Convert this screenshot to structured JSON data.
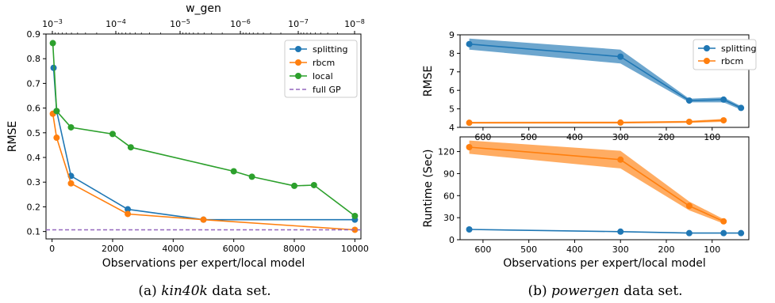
{
  "chart_data": [
    {
      "type": "line",
      "caption": {
        "prefix": "(a) ",
        "dataset": "kin40k",
        "suffix": " data set."
      },
      "xlabel": "Observations per expert/local model",
      "ylabel": "RMSE",
      "top_xlabel": "w_gen",
      "xlim": [
        -200,
        10200
      ],
      "ylim": [
        0.07,
        0.9
      ],
      "xticks": [
        0,
        2000,
        4000,
        6000,
        8000,
        10000
      ],
      "xtick_labels": [
        "0",
        "2000",
        "4000",
        "6000",
        "8000",
        "10000"
      ],
      "yticks": [
        0.1,
        0.2,
        0.3,
        0.4,
        0.5,
        0.6,
        0.7,
        0.8,
        0.9
      ],
      "ytick_labels": [
        "0.1",
        "0.2",
        "0.3",
        "0.4",
        "0.5",
        "0.6",
        "0.7",
        "0.8",
        "0.9"
      ],
      "top_xaxis": {
        "scale": "log",
        "ticks": [
          {
            "value": 0.001,
            "base": "10",
            "exp": "−3"
          },
          {
            "value": 0.0001,
            "base": "10",
            "exp": "−4"
          },
          {
            "value": 1e-05,
            "base": "10",
            "exp": "−5"
          },
          {
            "value": 1e-06,
            "base": "10",
            "exp": "−6"
          },
          {
            "value": 1e-07,
            "base": "10",
            "exp": "−7"
          },
          {
            "value": 1e-08,
            "base": "10",
            "exp": "−8"
          }
        ]
      },
      "legend_position": "top-right",
      "series": [
        {
          "name": "splitting",
          "color": "#1f77b4",
          "x": [
            50,
            150,
            625,
            2500,
            5000,
            10000
          ],
          "y": [
            0.763,
            0.588,
            0.325,
            0.19,
            0.148,
            0.148
          ]
        },
        {
          "name": "rbcm",
          "color": "#ff7f0e",
          "x": [
            25,
            150,
            625,
            2500,
            5000,
            10000
          ],
          "y": [
            0.577,
            0.48,
            0.295,
            0.171,
            0.148,
            0.107
          ]
        },
        {
          "name": "local",
          "color": "#2ca02c",
          "x": [
            25,
            150,
            625,
            2000,
            2600,
            6000,
            6600,
            8000,
            8650,
            10000
          ],
          "y": [
            0.863,
            0.588,
            0.522,
            0.495,
            0.441,
            0.344,
            0.322,
            0.285,
            0.288,
            0.163
          ]
        },
        {
          "name": "full GP",
          "color": "#9467bd",
          "style": "dashed",
          "hline": 0.107
        }
      ]
    },
    {
      "type": "line",
      "caption": {
        "prefix": "(b) ",
        "dataset": "powergen",
        "suffix": " data set."
      },
      "xlabel": "Observations per expert/local model",
      "xaxis_inverted": true,
      "xlim": [
        650,
        20
      ],
      "xticks": [
        600,
        500,
        400,
        300,
        200,
        100
      ],
      "xtick_labels": [
        "600",
        "500",
        "400",
        "300",
        "200",
        "100"
      ],
      "legend_position": "top-right",
      "panels": [
        {
          "ylabel": "RMSE",
          "ylim": [
            4,
            9
          ],
          "yticks": [
            4,
            5,
            6,
            7,
            8,
            9
          ],
          "ytick_labels": [
            "4",
            "5",
            "6",
            "7",
            "8",
            "9"
          ],
          "series": [
            {
              "name": "splitting",
              "color": "#1f77b4",
              "x": [
                630,
                300,
                150,
                75,
                37
              ],
              "y": [
                8.5,
                7.82,
                5.45,
                5.5,
                5.05
              ],
              "lower": [
                8.2,
                7.45,
                5.35,
                5.35,
                4.95
              ],
              "upper": [
                8.8,
                8.2,
                5.55,
                5.62,
                5.15
              ]
            },
            {
              "name": "rbcm",
              "color": "#ff7f0e",
              "x": [
                630,
                300,
                150,
                75
              ],
              "y": [
                4.25,
                4.26,
                4.3,
                4.38
              ],
              "lower": [
                4.2,
                4.21,
                4.25,
                4.3
              ],
              "upper": [
                4.3,
                4.31,
                4.35,
                4.46
              ]
            }
          ]
        },
        {
          "ylabel": "Runtime (Sec)",
          "ylim": [
            0,
            140
          ],
          "yticks": [
            0,
            30,
            60,
            90,
            120
          ],
          "ytick_labels": [
            "0",
            "30",
            "60",
            "90",
            "120"
          ],
          "series": [
            {
              "name": "splitting",
              "color": "#1f77b4",
              "x": [
                630,
                300,
                150,
                75,
                37
              ],
              "y": [
                14,
                11,
                9,
                9,
                9
              ]
            },
            {
              "name": "rbcm",
              "color": "#ff7f0e",
              "x": [
                630,
                300,
                150,
                75
              ],
              "y": [
                126,
                109,
                46,
                25
              ],
              "lower": [
                117,
                97,
                40,
                22
              ],
              "upper": [
                135,
                121,
                52,
                28
              ]
            }
          ]
        }
      ]
    }
  ]
}
